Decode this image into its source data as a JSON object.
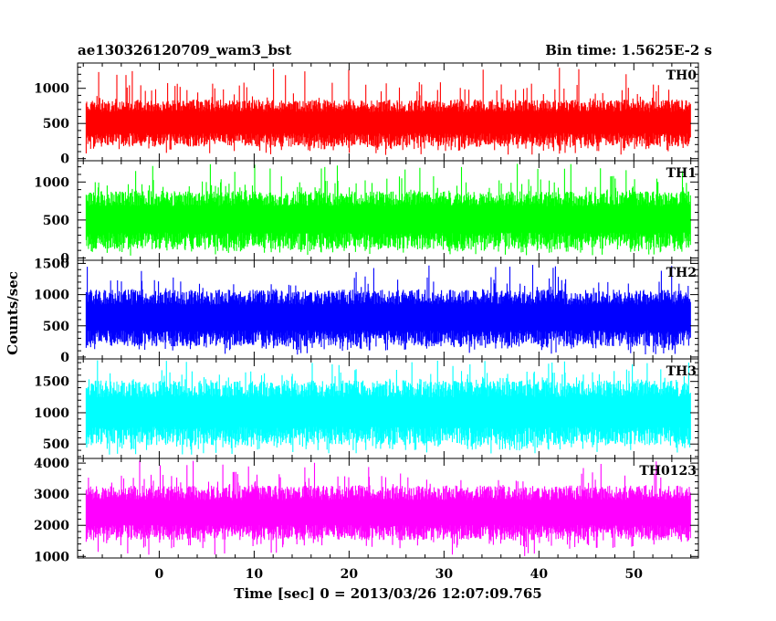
{
  "header": {
    "title": "ae130326120709_wam3_bst",
    "bin_time": "Bin time: 1.5625E-2 s"
  },
  "chart_data": {
    "type": "line",
    "title": "ae130326120709_wam3_bst",
    "subtitle": "Bin time: 1.5625E-2 s",
    "xlabel": "Time [sec] 0 = 2013/03/26 12:07:09.765",
    "ylabel": "Counts/sec",
    "xlim": [
      -8.6,
      56.8
    ],
    "x_ticks": [
      0,
      10,
      20,
      30,
      40,
      50
    ],
    "data_range": [
      -7.7,
      56.0
    ],
    "grid": false,
    "panels": [
      {
        "name": "TH0",
        "color": "#ff0000",
        "ylim": [
          -30,
          1360
        ],
        "yticks": [
          0,
          500,
          1000
        ],
        "baseline": 520,
        "low": 170,
        "high": 840,
        "spike": 1300,
        "dip": 50
      },
      {
        "name": "TH1",
        "color": "#00ff00",
        "ylim": [
          -30,
          1280
        ],
        "yticks": [
          0,
          500,
          1000
        ],
        "baseline": 520,
        "low": 110,
        "high": 880,
        "spike": 1240,
        "dip": 30
      },
      {
        "name": "TH2",
        "color": "#0000ff",
        "ylim": [
          -30,
          1550
        ],
        "yticks": [
          0,
          500,
          1000,
          1500
        ],
        "baseline": 640,
        "low": 170,
        "high": 1080,
        "spike": 1480,
        "dip": 40
      },
      {
        "name": "TH3",
        "color": "#00ffff",
        "ylim": [
          270,
          1860
        ],
        "yticks": [
          500,
          1000,
          1500
        ],
        "baseline": 1020,
        "low": 480,
        "high": 1520,
        "spike": 1840,
        "dip": 330
      },
      {
        "name": "TH0123",
        "color": "#ff00ff",
        "ylim": [
          950,
          4150
        ],
        "yticks": [
          1000,
          2000,
          3000,
          4000
        ],
        "baseline": 2420,
        "low": 1520,
        "high": 3280,
        "spike": 4080,
        "dip": 1010
      }
    ]
  }
}
